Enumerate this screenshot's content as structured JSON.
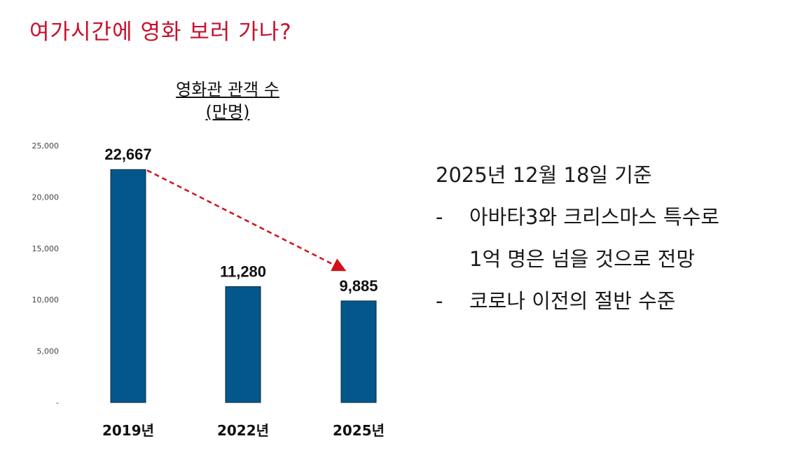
{
  "slide": {
    "title": "여가시간에 영화 보러 가나?",
    "notes": {
      "heading": "2025년 12월 18일 기준",
      "bullets": [
        {
          "marker": "-",
          "lines": [
            "아바타3와 크리스마스 특수로",
            "1억 명은 넘을 것으로 전망"
          ]
        },
        {
          "marker": "-",
          "lines": [
            "코로나 이전의 절반 수준"
          ]
        }
      ]
    }
  },
  "chart_data": {
    "type": "bar",
    "title": "영화관 관객 수",
    "subtitle": "(만명)",
    "categories": [
      "2019년",
      "2022년",
      "2025년"
    ],
    "values": [
      22667,
      11280,
      9885
    ],
    "data_labels": [
      "22,667",
      "11,280",
      "9,885"
    ],
    "ylim": [
      0,
      25000
    ],
    "yticks": [
      0,
      5000,
      10000,
      15000,
      20000,
      25000
    ],
    "ytick_labels": [
      "-",
      "5,000",
      "10,000",
      "15,000",
      "20,000",
      "25,000"
    ],
    "grid": false,
    "bar_color": "#04578a",
    "annotation": {
      "type": "dashed-arrow",
      "from": "2019년",
      "to": "2025년",
      "color": "#d0121b"
    }
  }
}
